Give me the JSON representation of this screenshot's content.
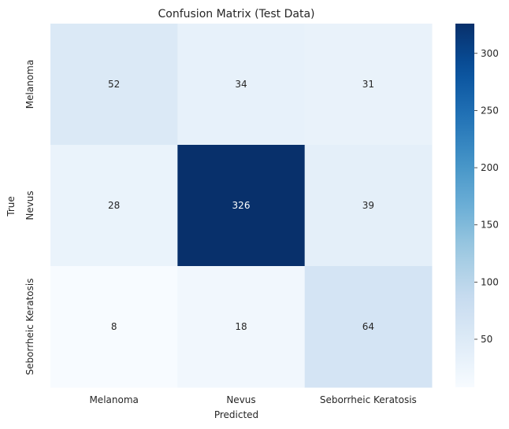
{
  "chart_data": {
    "type": "heatmap",
    "title": "Confusion Matrix (Test Data)",
    "xlabel": "Predicted",
    "ylabel": "True",
    "x_categories": [
      "Melanoma",
      "Nevus",
      "Seborrheic Keratosis"
    ],
    "y_categories": [
      "Melanoma",
      "Nevus",
      "Seborrheic Keratosis"
    ],
    "values": [
      [
        52,
        34,
        31
      ],
      [
        28,
        326,
        39
      ],
      [
        8,
        18,
        64
      ]
    ],
    "colorbar": {
      "range": [
        8,
        326
      ],
      "ticks": [
        50,
        100,
        150,
        200,
        250,
        300
      ],
      "colormap": "Blues",
      "low_color": "#f7fbff",
      "high_color": "#08306b"
    },
    "grid": false,
    "legend": "colorbar-right"
  }
}
